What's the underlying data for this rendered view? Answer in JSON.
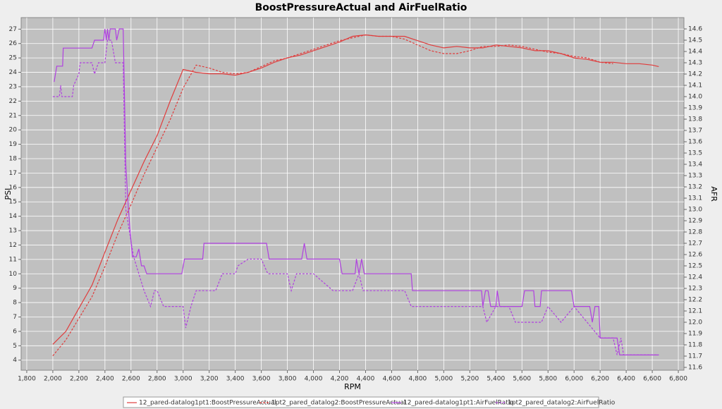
{
  "chart_data": {
    "type": "line",
    "title": "BoostPressureActual and AirFuelRatio",
    "x_label": "RPM",
    "y_label": "PSI",
    "y2_label": "AFR",
    "xlim": [
      1757,
      6843
    ],
    "xticks": [
      {
        "value": 1800,
        "label": "1,800"
      },
      {
        "value": 2000,
        "label": "2,000"
      },
      {
        "value": 2200,
        "label": "2,200"
      },
      {
        "value": 2400,
        "label": "2,400"
      },
      {
        "value": 2600,
        "label": "2,600"
      },
      {
        "value": 2800,
        "label": "2,800"
      },
      {
        "value": 3000,
        "label": "3,000"
      },
      {
        "value": 3200,
        "label": "3,200"
      },
      {
        "value": 3400,
        "label": "3,400"
      },
      {
        "value": 3600,
        "label": "3,600"
      },
      {
        "value": 3800,
        "label": "3,800"
      },
      {
        "value": 4000,
        "label": "4,000"
      },
      {
        "value": 4200,
        "label": "4,200"
      },
      {
        "value": 4400,
        "label": "4,400"
      },
      {
        "value": 4600,
        "label": "4,600"
      },
      {
        "value": 4800,
        "label": "4,800"
      },
      {
        "value": 5000,
        "label": "5,000"
      },
      {
        "value": 5200,
        "label": "5,200"
      },
      {
        "value": 5400,
        "label": "5,400"
      },
      {
        "value": 5600,
        "label": "5,600"
      },
      {
        "value": 5800,
        "label": "5,800"
      },
      {
        "value": 6000,
        "label": "6,000"
      },
      {
        "value": 6200,
        "label": "6,200"
      },
      {
        "value": 6400,
        "label": "6,400"
      },
      {
        "value": 6600,
        "label": "6,600"
      },
      {
        "value": 6800,
        "label": "6,800"
      }
    ],
    "ylim": [
      3.3,
      27.8
    ],
    "yticks": [
      4,
      5,
      6,
      7,
      8,
      9,
      10,
      11,
      12,
      13,
      14,
      15,
      16,
      17,
      18,
      19,
      20,
      21,
      22,
      23,
      24,
      25,
      26,
      27
    ],
    "y2lim": [
      11.575,
      14.7
    ],
    "y2ticks": [
      11.6,
      11.7,
      11.8,
      11.9,
      {
        "value": 12,
        "label": "12.0"
      },
      12.1,
      12.2,
      12.3,
      12.4,
      12.5,
      12.6,
      12.7,
      12.8,
      12.9,
      {
        "value": 13,
        "label": "13.0"
      },
      13.1,
      13.2,
      13.3,
      13.4,
      13.5,
      13.6,
      13.7,
      13.8,
      13.9,
      {
        "value": 14,
        "label": "14.0"
      },
      14.1,
      14.2,
      14.3,
      14.4,
      14.5,
      14.6
    ],
    "grid": true,
    "legend": "bottom",
    "series": [
      {
        "name": "12_pared-datalog1pt1:BoostPressureActual",
        "color": "#e03c3c",
        "dash": "solid",
        "x": [
          2000,
          2100,
          2200,
          2300,
          2400,
          2500,
          2600,
          2700,
          2800,
          2900,
          3000,
          3100,
          3200,
          3300,
          3400,
          3500,
          3600,
          3700,
          3800,
          3900,
          4000,
          4100,
          4200,
          4300,
          4400,
          4500,
          4600,
          4700,
          4800,
          4900,
          5000,
          5100,
          5200,
          5300,
          5400,
          5500,
          5600,
          5700,
          5800,
          5900,
          6000,
          6100,
          6200,
          6300,
          6400,
          6500,
          6600,
          6650
        ],
        "values": [
          5.1,
          6.0,
          7.6,
          9.2,
          11.5,
          13.8,
          15.8,
          17.8,
          19.6,
          22.0,
          24.2,
          24.0,
          23.9,
          23.9,
          23.8,
          24.0,
          24.3,
          24.7,
          25.0,
          25.2,
          25.5,
          25.8,
          26.1,
          26.5,
          26.6,
          26.5,
          26.5,
          26.5,
          26.2,
          25.9,
          25.7,
          25.8,
          25.7,
          25.7,
          25.9,
          25.8,
          25.7,
          25.5,
          25.5,
          25.3,
          25.0,
          24.9,
          24.7,
          24.7,
          24.6,
          24.6,
          24.5,
          24.4
        ]
      },
      {
        "name": "1pt2_pared_datalog2:BoostPressureActual",
        "color": "#e03c3c",
        "dash": "dashed",
        "x": [
          2000,
          2100,
          2200,
          2300,
          2400,
          2500,
          2600,
          2700,
          2800,
          2900,
          3000,
          3100,
          3200,
          3300,
          3400,
          3500,
          3600,
          3700,
          3800,
          3900,
          4000,
          4100,
          4200,
          4300,
          4400,
          4500,
          4600,
          4700,
          4800,
          4900,
          5000,
          5100,
          5200,
          5300,
          5400,
          5500,
          5600,
          5700,
          5800,
          5900,
          6000,
          6100,
          6200,
          6300
        ],
        "values": [
          4.3,
          5.4,
          6.9,
          8.4,
          10.5,
          12.8,
          14.8,
          16.9,
          18.8,
          20.7,
          22.9,
          24.5,
          24.3,
          24.0,
          23.9,
          24.0,
          24.4,
          24.8,
          25.0,
          25.3,
          25.6,
          25.9,
          26.2,
          26.4,
          26.6,
          26.5,
          26.5,
          26.3,
          25.9,
          25.5,
          25.3,
          25.3,
          25.5,
          25.8,
          25.8,
          25.9,
          25.8,
          25.6,
          25.4,
          25.3,
          25.1,
          25.0,
          24.7,
          24.6
        ]
      },
      {
        "name": "12_pared-datalog1pt1:AirFuelRatio",
        "color": "#b040e0",
        "dash": "solid",
        "axis": "y2",
        "x": [
          2010,
          2030,
          2075,
          2080,
          2300,
          2320,
          2390,
          2400,
          2410,
          2420,
          2430,
          2440,
          2480,
          2490,
          2510,
          2540,
          2560,
          2580,
          2610,
          2640,
          2660,
          2680,
          2700,
          2720,
          2990,
          3010,
          3150,
          3160,
          3640,
          3660,
          3910,
          3930,
          3950,
          4200,
          4220,
          4320,
          4330,
          4350,
          4370,
          4390,
          4750,
          4760,
          5290,
          5300,
          5320,
          5340,
          5360,
          5400,
          5410,
          5430,
          5600,
          5620,
          5690,
          5700,
          5740,
          5750,
          5980,
          6000,
          6120,
          6140,
          6160,
          6190,
          6200,
          6330,
          6350,
          6650
        ],
        "values": [
          14.13,
          14.27,
          14.27,
          14.43,
          14.43,
          14.5,
          14.5,
          14.6,
          14.5,
          14.6,
          14.5,
          14.6,
          14.6,
          14.5,
          14.6,
          14.6,
          13.4,
          13.0,
          12.58,
          12.58,
          12.65,
          12.5,
          12.5,
          12.43,
          12.43,
          12.56,
          12.56,
          12.7,
          12.7,
          12.56,
          12.56,
          12.7,
          12.56,
          12.56,
          12.43,
          12.43,
          12.56,
          12.43,
          12.56,
          12.43,
          12.43,
          12.28,
          12.28,
          12.14,
          12.28,
          12.28,
          12.14,
          12.14,
          12.28,
          12.14,
          12.14,
          12.28,
          12.28,
          12.14,
          12.14,
          12.28,
          12.28,
          12.14,
          12.14,
          12.0,
          12.14,
          12.14,
          11.86,
          11.86,
          11.71,
          11.71
        ]
      },
      {
        "name": "1pt2_pared_datalog2:AirFuelRatio",
        "color": "#b040e0",
        "dash": "dashed",
        "axis": "y2",
        "x": [
          2000,
          2050,
          2060,
          2070,
          2150,
          2160,
          2200,
          2210,
          2300,
          2320,
          2350,
          2400,
          2420,
          2450,
          2480,
          2540,
          2560,
          2620,
          2700,
          2750,
          2780,
          2800,
          2850,
          3000,
          3020,
          3060,
          3100,
          3250,
          3300,
          3400,
          3420,
          3500,
          3600,
          3650,
          3800,
          3830,
          3870,
          4000,
          4150,
          4300,
          4350,
          4380,
          4700,
          4750,
          5300,
          5330,
          5400,
          5500,
          5550,
          5750,
          5800,
          5900,
          6000,
          6100,
          6200,
          6300,
          6330,
          6360,
          6380,
          6650
        ],
        "values": [
          14.0,
          14.0,
          14.1,
          14.0,
          14.0,
          14.1,
          14.2,
          14.3,
          14.3,
          14.2,
          14.3,
          14.3,
          14.5,
          14.5,
          14.3,
          14.3,
          13.0,
          12.58,
          12.28,
          12.14,
          12.28,
          12.28,
          12.14,
          12.14,
          11.95,
          12.14,
          12.28,
          12.28,
          12.43,
          12.43,
          12.5,
          12.56,
          12.56,
          12.43,
          12.43,
          12.28,
          12.43,
          12.43,
          12.28,
          12.28,
          12.43,
          12.28,
          12.28,
          12.14,
          12.14,
          12.0,
          12.14,
          12.14,
          12.0,
          12.0,
          12.14,
          12.0,
          12.14,
          12.0,
          11.86,
          11.86,
          11.71,
          11.86,
          11.71,
          11.71
        ]
      }
    ]
  }
}
